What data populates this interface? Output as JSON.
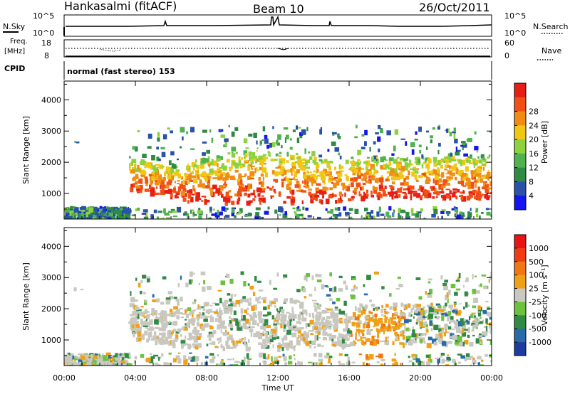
{
  "header": {
    "station": "Hankasalmi (fitACF)",
    "beam": "Beam 10",
    "date": "26/Oct/2011"
  },
  "top_panels": {
    "nsky_label": "N.Sky",
    "nsky_ticks": [
      "10^5",
      "10^0"
    ],
    "nsearch_label": "N.Search",
    "nsearch_ticks": [
      "10^5",
      "10^0"
    ],
    "freq_label": "Freq.",
    "freq_unit": "[MHz]",
    "freq_ticks": [
      "18",
      "8"
    ],
    "nave_label": "Nave",
    "nave_ticks": [
      "60",
      "0"
    ],
    "cpid_label": "CPID",
    "cpid_text": "normal (fast stereo) 153"
  },
  "chart_data": [
    {
      "type": "heatmap",
      "name": "power-panel",
      "ylabel": "Slant Range [km]",
      "xlabel": "",
      "ylim": [
        180,
        4600
      ],
      "xlim": [
        0,
        24
      ],
      "yticks": [
        "1000",
        "2000",
        "3000",
        "4000"
      ],
      "ytick_values": [
        1000,
        2000,
        3000,
        4000
      ],
      "colorbar": {
        "label": "Power [dB]",
        "ticks": [
          "4",
          "8",
          "12",
          "16",
          "20",
          "24",
          "28"
        ],
        "tick_values": [
          4,
          8,
          12,
          16,
          20,
          24,
          28
        ],
        "colors": [
          "#1414f0",
          "#2a52a8",
          "#2f8a45",
          "#4fb24f",
          "#8cd23c",
          "#f0c814",
          "#f08c14",
          "#f05014",
          "#e61e14"
        ]
      }
    },
    {
      "type": "heatmap",
      "name": "velocity-panel",
      "ylabel": "Slant Range [km]",
      "xlabel": "Time UT",
      "ylim": [
        180,
        4600
      ],
      "xlim": [
        0,
        24
      ],
      "yticks": [
        "1000",
        "2000",
        "3000",
        "4000"
      ],
      "ytick_values": [
        1000,
        2000,
        3000,
        4000
      ],
      "xticks": [
        "00:00",
        "04:00",
        "08:00",
        "12:00",
        "16:00",
        "20:00",
        "00:00"
      ],
      "xtick_values": [
        0,
        4,
        8,
        12,
        16,
        20,
        24
      ],
      "colorbar": {
        "label": "Velocity [m s⁻¹]",
        "ticks": [
          "1000",
          "500",
          "100",
          "25",
          "-25",
          "-100",
          "-500",
          "-1000"
        ],
        "colors": [
          "#1e3ca0",
          "#2a6aa8",
          "#2f8a45",
          "#6cc23c",
          "#c8c8c0",
          "#f0a014",
          "#f07814",
          "#f03c14",
          "#e61414"
        ]
      }
    }
  ]
}
